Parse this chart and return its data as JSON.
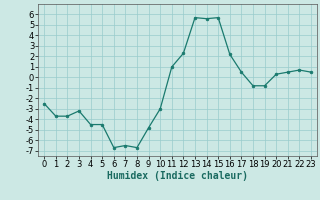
{
  "x": [
    0,
    1,
    2,
    3,
    4,
    5,
    6,
    7,
    8,
    9,
    10,
    11,
    12,
    13,
    14,
    15,
    16,
    17,
    18,
    19,
    20,
    21,
    22,
    23
  ],
  "y": [
    -2.5,
    -3.7,
    -3.7,
    -3.2,
    -4.5,
    -4.5,
    -6.7,
    -6.5,
    -6.7,
    -4.8,
    -3.0,
    1.0,
    2.3,
    5.7,
    5.6,
    5.7,
    2.2,
    0.5,
    -0.8,
    -0.8,
    0.3,
    0.5,
    0.7,
    0.5
  ],
  "xlabel": "Humidex (Indice chaleur)",
  "ylim": [
    -7.5,
    7
  ],
  "xlim": [
    -0.5,
    23.5
  ],
  "yticks": [
    -7,
    -6,
    -5,
    -4,
    -3,
    -2,
    -1,
    0,
    1,
    2,
    3,
    4,
    5,
    6
  ],
  "xticks": [
    0,
    1,
    2,
    3,
    4,
    5,
    6,
    7,
    8,
    9,
    10,
    11,
    12,
    13,
    14,
    15,
    16,
    17,
    18,
    19,
    20,
    21,
    22,
    23
  ],
  "line_color": "#1a7a6e",
  "marker": "o",
  "marker_size": 2.0,
  "bg_color": "#cce8e4",
  "grid_color": "#99cccc",
  "xlabel_fontsize": 7,
  "tick_fontsize": 6,
  "linewidth": 0.9
}
